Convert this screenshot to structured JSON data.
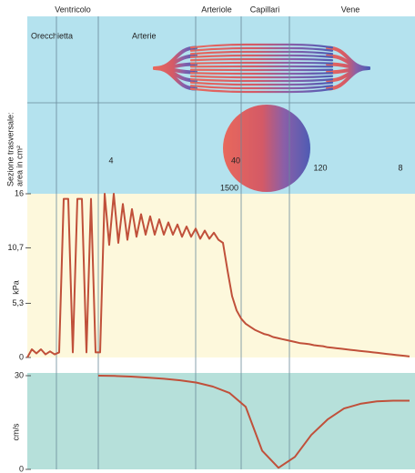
{
  "regions": {
    "top": [
      "Ventricolo",
      "Arteriole",
      "Capillari",
      "Vene"
    ],
    "inner": [
      "Orecchietta",
      "Arterie"
    ]
  },
  "cross_section": {
    "label": [
      "Sezione trasversale:",
      "area in cm²"
    ],
    "values": [
      4,
      40,
      1500,
      120,
      8
    ]
  },
  "chart_data": [
    {
      "type": "line",
      "ylabel": "kPa",
      "ylim": [
        0,
        16
      ],
      "yticks": [
        0,
        {
          "value": 5.3,
          "label": "5,3"
        },
        {
          "value": 10.7,
          "label": "10,7"
        },
        16
      ],
      "series": [
        {
          "color": "#c0503a",
          "values": [
            0,
            0.8,
            0.4,
            0.8,
            0.3,
            0.6,
            0.3,
            0.5,
            15.5,
            15.5,
            0.5,
            15.5,
            15.5,
            0.5,
            15.5,
            0.5,
            0.5,
            16,
            11,
            16,
            11.2,
            15,
            11.5,
            14.5,
            11.8,
            14,
            12,
            13.8,
            12,
            13.5,
            12,
            13.2,
            12,
            13,
            11.8,
            12.8,
            11.8,
            12.6,
            11.6,
            12.4,
            11.6,
            12.2,
            11.5,
            11.2,
            8.5,
            6,
            4.6,
            3.8,
            3.3,
            3,
            2.7,
            2.5,
            2.3,
            2.2,
            2,
            1.9,
            1.8,
            1.7,
            1.6,
            1.5,
            1.4,
            1.35,
            1.3,
            1.2,
            1.15,
            1.1,
            1,
            0.95,
            0.9,
            0.85,
            0.8,
            0.75,
            0.7,
            0.65,
            0.6,
            0.55,
            0.5,
            0.45,
            0.4,
            0.35,
            0.3,
            0.25,
            0.2,
            0.15,
            0.1
          ]
        }
      ]
    },
    {
      "type": "line",
      "ylabel": "cm/s",
      "ylim": [
        0,
        30
      ],
      "yticks": [
        0,
        30
      ],
      "series": [
        {
          "color": "#c0503a",
          "values": [
            30,
            29.9,
            29.7,
            29.4,
            29,
            28.5,
            27.8,
            26.5,
            24.5,
            20,
            6,
            0.5,
            4,
            11,
            16,
            19.5,
            21,
            21.8,
            22,
            22
          ]
        }
      ]
    }
  ]
}
